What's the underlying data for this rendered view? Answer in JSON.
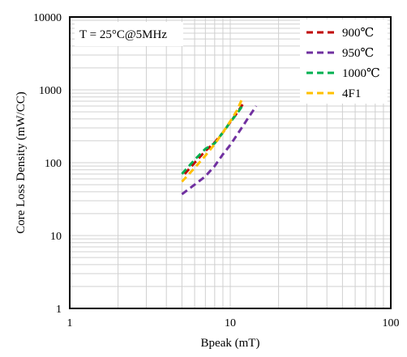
{
  "chart_data": {
    "type": "line",
    "xscale": "log",
    "yscale": "log",
    "xlim": [
      1,
      100
    ],
    "ylim": [
      1,
      10000
    ],
    "xlabel": "Bpeak (mT)",
    "ylabel": "Core Loss Density (mW/CC)",
    "x_ticks": [
      "1",
      "10",
      "100"
    ],
    "y_ticks": [
      "1",
      "10",
      "100",
      "1000",
      "10000"
    ],
    "grid": true,
    "legend_position": "top-right",
    "annotation": "T = 25°C@5MHz",
    "series": [
      {
        "name": "900℃",
        "color": "#c00000",
        "dash": "dashed",
        "x": [
          5.2,
          6,
          7,
          8,
          9,
          10,
          11,
          12
        ],
        "y": [
          70,
          100,
          145,
          190,
          260,
          360,
          480,
          640
        ]
      },
      {
        "name": "950℃",
        "color": "#7030a0",
        "dash": "dashed",
        "x": [
          5,
          6,
          7,
          8,
          9,
          10,
          11,
          12,
          13,
          14.5
        ],
        "y": [
          37,
          50,
          65,
          90,
          130,
          175,
          240,
          320,
          420,
          600
        ]
      },
      {
        "name": "1000℃",
        "color": "#00b050",
        "dash": "dashed",
        "x": [
          5,
          6,
          7,
          7.5,
          8,
          9,
          10,
          11,
          12
        ],
        "y": [
          70,
          110,
          155,
          170,
          185,
          260,
          360,
          470,
          620
        ]
      },
      {
        "name": "4F1",
        "color": "#ffc000",
        "dash": "dashed",
        "x": [
          5,
          6,
          7,
          8,
          9,
          10,
          11,
          12
        ],
        "y": [
          55,
          85,
          125,
          180,
          260,
          370,
          520,
          800
        ]
      }
    ]
  }
}
